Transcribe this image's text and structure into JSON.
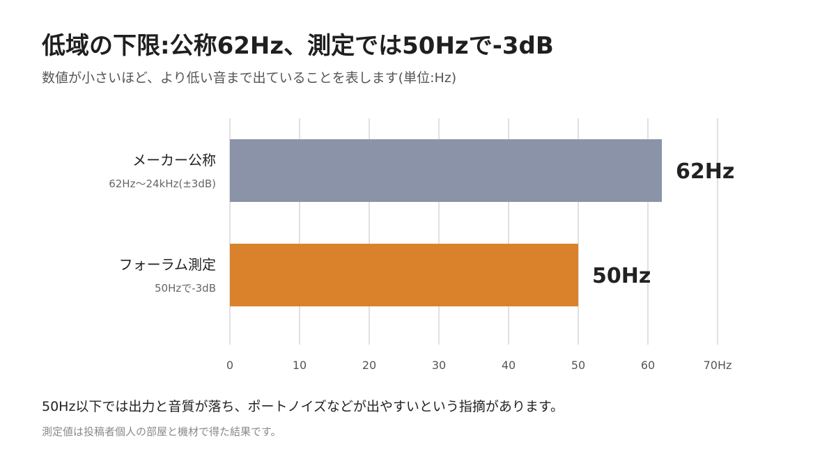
{
  "title": "低域の下限:公称62Hz、測定では50Hzで-3dB",
  "subtitle": "数値が小さいほど、より低い音まで出ていることを表します(単位:Hz)",
  "note": "50Hz以下では出力と音質が落ち、ポートノイズなどが出やすいという指摘があります。",
  "footnote": "測定値は投稿者個人の部屋と機材で得た結果です。",
  "chart_data": {
    "type": "bar",
    "orientation": "horizontal",
    "categories": [
      "メーカー公称",
      "フォーラム測定"
    ],
    "category_sublabels": [
      "62Hz〜24kHz(±3dB)",
      "50Hzで-3dB"
    ],
    "values": [
      62,
      50
    ],
    "value_labels": [
      "62Hz",
      "50Hz"
    ],
    "colors": [
      "#8a93a7",
      "#d9822b"
    ],
    "xlim": [
      0,
      70
    ],
    "xticks": [
      0,
      10,
      20,
      30,
      40,
      50,
      60,
      70
    ],
    "xtick_labels": [
      "0",
      "10",
      "20",
      "30",
      "40",
      "50",
      "60",
      "70Hz"
    ],
    "grid": true,
    "grid_color": "#d6d6d6"
  }
}
